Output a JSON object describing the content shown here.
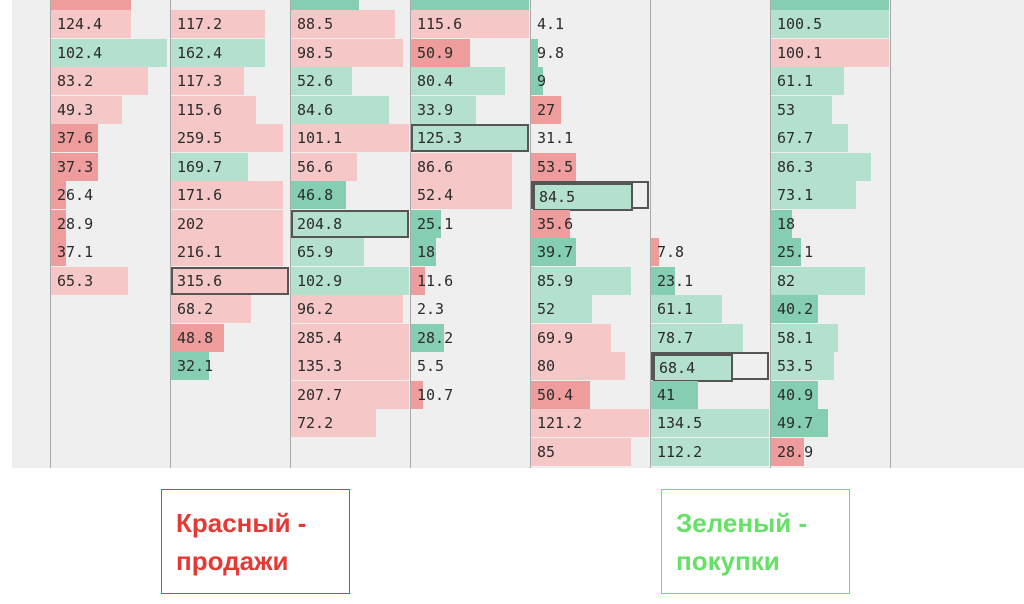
{
  "colors": {
    "sell": "#ee9c9c",
    "sell_light": "#f5c7c7",
    "buy": "#86ceb1",
    "buy_light": "#b4e1cd",
    "highlight_border": "#555555"
  },
  "columns": [
    {
      "id": "c1",
      "cells": [
        {
          "row": 0,
          "value": "124.4",
          "side": "sell",
          "fill": 0.68
        },
        {
          "row": 1,
          "value": "102.4",
          "side": "buy",
          "fill": 0.98
        },
        {
          "row": 2,
          "value": "83.2",
          "side": "sell",
          "fill": 0.82
        },
        {
          "row": 3,
          "value": "49.3",
          "side": "sell",
          "fill": 0.6
        },
        {
          "row": 4,
          "value": "37.6",
          "side": "sell",
          "fill": 0.4
        },
        {
          "row": 5,
          "value": "37.3",
          "side": "sell",
          "fill": 0.4
        },
        {
          "row": 6,
          "value": "26.4",
          "side": "sell",
          "fill": 0.13
        },
        {
          "row": 7,
          "value": "28.9",
          "side": "sell",
          "fill": 0.13
        },
        {
          "row": 8,
          "value": "37.1",
          "side": "sell",
          "fill": 0.13
        },
        {
          "row": 9,
          "value": "65.3",
          "side": "sell",
          "fill": 0.65
        }
      ]
    },
    {
      "id": "c2",
      "cells": [
        {
          "row": 0,
          "value": "117.2",
          "side": "sell",
          "fill": 0.8
        },
        {
          "row": 1,
          "value": "162.4",
          "side": "buy",
          "fill": 0.8
        },
        {
          "row": 2,
          "value": "117.3",
          "side": "sell",
          "fill": 0.62
        },
        {
          "row": 3,
          "value": "115.6",
          "side": "sell",
          "fill": 0.72
        },
        {
          "row": 4,
          "value": "259.5",
          "side": "sell",
          "fill": 0.95
        },
        {
          "row": 5,
          "value": "169.7",
          "side": "buy",
          "fill": 0.65
        },
        {
          "row": 6,
          "value": "171.6",
          "side": "sell",
          "fill": 0.95
        },
        {
          "row": 7,
          "value": "202",
          "side": "sell",
          "fill": 0.95
        },
        {
          "row": 8,
          "value": "216.1",
          "side": "sell",
          "fill": 0.95
        },
        {
          "row": 9,
          "value": "315.6",
          "side": "sell",
          "fill": 1.0,
          "highlight": true
        },
        {
          "row": 10,
          "value": "68.2",
          "side": "sell",
          "fill": 0.68
        },
        {
          "row": 11,
          "value": "48.8",
          "side": "sell",
          "fill": 0.45
        },
        {
          "row": 12,
          "value": "32.1",
          "side": "buy",
          "fill": 0.32
        }
      ]
    },
    {
      "id": "c3",
      "cells": [
        {
          "row": 0,
          "value": "88.5",
          "side": "sell",
          "fill": 0.88
        },
        {
          "row": 1,
          "value": "98.5",
          "side": "sell",
          "fill": 0.95
        },
        {
          "row": 2,
          "value": "52.6",
          "side": "buy",
          "fill": 0.52
        },
        {
          "row": 3,
          "value": "84.6",
          "side": "buy",
          "fill": 0.83
        },
        {
          "row": 4,
          "value": "101.1",
          "side": "sell",
          "fill": 1.0
        },
        {
          "row": 5,
          "value": "56.6",
          "side": "sell",
          "fill": 0.56
        },
        {
          "row": 6,
          "value": "46.8",
          "side": "buy",
          "fill": 0.47
        },
        {
          "row": 7,
          "value": "204.8",
          "side": "buy",
          "fill": 1.0,
          "highlight": true
        },
        {
          "row": 8,
          "value": "65.9",
          "side": "buy",
          "fill": 0.62
        },
        {
          "row": 9,
          "value": "102.9",
          "side": "buy",
          "fill": 1.0
        },
        {
          "row": 10,
          "value": "96.2",
          "side": "sell",
          "fill": 0.95
        },
        {
          "row": 11,
          "value": "285.4",
          "side": "sell",
          "fill": 1.0
        },
        {
          "row": 12,
          "value": "135.3",
          "side": "sell",
          "fill": 1.0
        },
        {
          "row": 13,
          "value": "207.7",
          "side": "sell",
          "fill": 1.0
        },
        {
          "row": 14,
          "value": "72.2",
          "side": "sell",
          "fill": 0.72
        }
      ]
    },
    {
      "id": "c4",
      "cells": [
        {
          "row": 0,
          "value": "115.6",
          "side": "sell",
          "fill": 1.0
        },
        {
          "row": 1,
          "value": "50.9",
          "side": "sell",
          "fill": 0.5
        },
        {
          "row": 2,
          "value": "80.4",
          "side": "buy",
          "fill": 0.8
        },
        {
          "row": 3,
          "value": "33.9",
          "side": "buy",
          "fill": 0.55
        },
        {
          "row": 4,
          "value": "125.3",
          "side": "buy",
          "fill": 1.0,
          "highlight": true
        },
        {
          "row": 5,
          "value": "86.6",
          "side": "sell",
          "fill": 0.86
        },
        {
          "row": 6,
          "value": "52.4",
          "side": "sell",
          "fill": 0.86
        },
        {
          "row": 7,
          "value": "25.1",
          "side": "buy",
          "fill": 0.25
        },
        {
          "row": 8,
          "value": "18",
          "side": "buy",
          "fill": 0.21
        },
        {
          "row": 9,
          "value": "11.6",
          "side": "sell",
          "fill": 0.12
        },
        {
          "row": 10,
          "value": "2.3",
          "side": "sell",
          "fill": 0.0
        },
        {
          "row": 11,
          "value": "28.2",
          "side": "buy",
          "fill": 0.28
        },
        {
          "row": 12,
          "value": "5.5",
          "side": "sell",
          "fill": 0.0
        },
        {
          "row": 13,
          "value": "10.7",
          "side": "sell",
          "fill": 0.1
        }
      ]
    },
    {
      "id": "c5",
      "cells": [
        {
          "row": 0,
          "value": "4.1",
          "side": "buy",
          "fill": 0.0
        },
        {
          "row": 1,
          "value": "9.8",
          "side": "buy",
          "fill": 0.06
        },
        {
          "row": 2,
          "value": "9",
          "side": "buy",
          "fill": 0.1
        },
        {
          "row": 3,
          "value": "27",
          "side": "sell",
          "fill": 0.25
        },
        {
          "row": 4,
          "value": "31.1",
          "side": "sell",
          "fill": 0.0
        },
        {
          "row": 5,
          "value": "53.5",
          "side": "sell",
          "fill": 0.38
        },
        {
          "row": 6,
          "value": "84.5",
          "side": "buy",
          "fill": 0.85,
          "highlight": true,
          "full": true
        },
        {
          "row": 7,
          "value": "35.6",
          "side": "sell",
          "fill": 0.33
        },
        {
          "row": 8,
          "value": "39.7",
          "side": "buy",
          "fill": 0.38
        },
        {
          "row": 9,
          "value": "85.9",
          "side": "buy",
          "fill": 0.85
        },
        {
          "row": 10,
          "value": "52",
          "side": "buy",
          "fill": 0.52
        },
        {
          "row": 11,
          "value": "69.9",
          "side": "sell",
          "fill": 0.68
        },
        {
          "row": 12,
          "value": "80",
          "side": "sell",
          "fill": 0.8
        },
        {
          "row": 13,
          "value": "50.4",
          "side": "sell",
          "fill": 0.5
        },
        {
          "row": 14,
          "value": "121.2",
          "side": "sell",
          "fill": 1.0
        },
        {
          "row": 15,
          "value": "85",
          "side": "sell",
          "fill": 0.85
        }
      ]
    },
    {
      "id": "c6",
      "cells": [
        {
          "row": 8,
          "value": "7.8",
          "side": "sell",
          "fill": 0.07
        },
        {
          "row": 9,
          "value": "23.1",
          "side": "buy",
          "fill": 0.2
        },
        {
          "row": 10,
          "value": "61.1",
          "side": "buy",
          "fill": 0.6
        },
        {
          "row": 11,
          "value": "78.7",
          "side": "buy",
          "fill": 0.78
        },
        {
          "row": 12,
          "value": "68.4",
          "side": "buy",
          "fill": 0.68,
          "highlight": true,
          "full": true
        },
        {
          "row": 13,
          "value": "41",
          "side": "buy",
          "fill": 0.4
        },
        {
          "row": 14,
          "value": "134.5",
          "side": "buy",
          "fill": 1.0
        },
        {
          "row": 15,
          "value": "112.2",
          "side": "buy",
          "fill": 1.0
        }
      ]
    },
    {
      "id": "c7",
      "cells": [
        {
          "row": 0,
          "value": "100.5",
          "side": "buy",
          "fill": 1.0
        },
        {
          "row": 1,
          "value": "100.1",
          "side": "sell",
          "fill": 1.0
        },
        {
          "row": 2,
          "value": "61.1",
          "side": "buy",
          "fill": 0.62
        },
        {
          "row": 3,
          "value": "53",
          "side": "buy",
          "fill": 0.52
        },
        {
          "row": 4,
          "value": "67.7",
          "side": "buy",
          "fill": 0.65
        },
        {
          "row": 5,
          "value": "86.3",
          "side": "buy",
          "fill": 0.85
        },
        {
          "row": 6,
          "value": "73.1",
          "side": "buy",
          "fill": 0.72
        },
        {
          "row": 7,
          "value": "18",
          "side": "buy",
          "fill": 0.18
        },
        {
          "row": 8,
          "value": "25.1",
          "side": "buy",
          "fill": 0.25
        },
        {
          "row": 9,
          "value": "82",
          "side": "buy",
          "fill": 0.8
        },
        {
          "row": 10,
          "value": "40.2",
          "side": "buy",
          "fill": 0.4
        },
        {
          "row": 11,
          "value": "58.1",
          "side": "buy",
          "fill": 0.57
        },
        {
          "row": 12,
          "value": "53.5",
          "side": "buy",
          "fill": 0.53
        },
        {
          "row": 13,
          "value": "40.9",
          "side": "buy",
          "fill": 0.4
        },
        {
          "row": 14,
          "value": "49.7",
          "side": "buy",
          "fill": 0.48
        },
        {
          "row": 15,
          "value": "28.9",
          "side": "sell",
          "fill": 0.28
        }
      ]
    }
  ],
  "legend": {
    "sell": {
      "line1": "Красный -",
      "line2": "продажи"
    },
    "buy": {
      "line1": "Зеленый -",
      "line2": "покупки"
    }
  }
}
